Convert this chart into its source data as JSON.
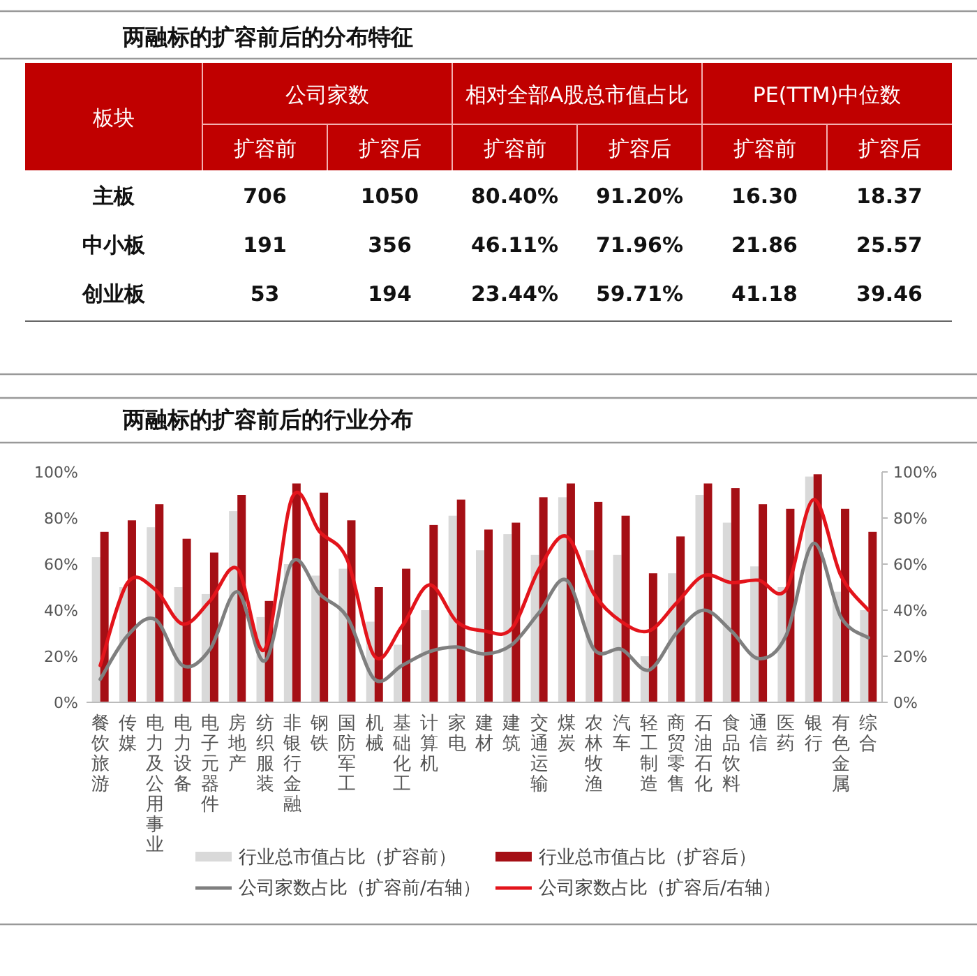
{
  "chart_data": [
    {
      "type": "other",
      "title": "两融标的扩容前后的分布特征",
      "annotations": [
        "板块",
        "公司家数",
        "相对全部A股总市值占比",
        "PE(TTM)中位数",
        "扩容前",
        "扩容后",
        "扩容前",
        "扩容后",
        "扩容前",
        "扩容后",
        "主板",
        "706",
        "1050",
        "80.40%",
        "91.20%",
        "16.30",
        "18.37",
        "中小板",
        "191",
        "356",
        "46.11%",
        "71.96%",
        "21.86",
        "25.57",
        "创业板",
        "53",
        "194",
        "23.44%",
        "59.71%",
        "41.18",
        "39.46"
      ]
    },
    {
      "type": "bar",
      "title": "两融标的扩容前后的行业分布",
      "categories": [
        "餐饮旅游",
        "传媒",
        "电力及公用事业",
        "电力设备",
        "电子元器件",
        "房地产",
        "纺织服装",
        "非银行金融",
        "钢铁",
        "国防军工",
        "机械",
        "基础化工",
        "计算机",
        "家电",
        "建材",
        "建筑",
        "交通运输",
        "煤炭",
        "农林牧渔",
        "汽车",
        "轻工制造",
        "商贸零售",
        "石油石化",
        "食品饮料",
        "通信",
        "医药",
        "银行",
        "有色金属",
        "综合"
      ],
      "series": [
        {
          "name": "行业总市值占比（扩容前）",
          "color": "#d9d9d9",
          "values": [
            63,
            50,
            76,
            50,
            47,
            83,
            37,
            60,
            55,
            58,
            35,
            25,
            40,
            81,
            66,
            73,
            64,
            89,
            66,
            64,
            20,
            56,
            90,
            78,
            59,
            50,
            98,
            48,
            40
          ]
        },
        {
          "name": "行业总市值占比（扩容后）",
          "color": "#a50f15",
          "values": [
            74,
            79,
            86,
            71,
            65,
            90,
            44,
            95,
            91,
            79,
            50,
            58,
            77,
            88,
            75,
            78,
            89,
            95,
            87,
            81,
            56,
            72,
            95,
            93,
            86,
            84,
            99,
            84,
            74
          ]
        },
        {
          "name": "公司家数占比（扩容前/右轴）",
          "type": "line",
          "color": "#7f7f7f",
          "values": [
            10,
            29,
            36,
            16,
            23,
            48,
            18,
            61,
            47,
            37,
            10,
            16,
            22,
            24,
            21,
            25,
            39,
            53,
            23,
            23,
            14,
            30,
            40,
            31,
            19,
            29,
            69,
            37,
            28
          ]
        },
        {
          "name": "公司家数占比（扩容后/右轴）",
          "type": "line",
          "color": "#e3141b",
          "values": [
            16,
            52,
            49,
            34,
            44,
            58,
            23,
            89,
            74,
            62,
            20,
            33,
            51,
            35,
            31,
            32,
            58,
            72,
            47,
            35,
            31,
            43,
            55,
            52,
            53,
            49,
            88,
            55,
            40
          ]
        }
      ],
      "ylim": [
        0,
        100
      ],
      "yticks": [
        {
          "value": 0,
          "label": "0%"
        },
        {
          "value": 20,
          "label": "20%"
        },
        {
          "value": 40,
          "label": "40%"
        },
        {
          "value": 60,
          "label": "60%"
        },
        {
          "value": 80,
          "label": "80%"
        },
        {
          "value": 100,
          "label": "100%"
        }
      ],
      "y2lim": [
        0,
        100
      ],
      "y2ticks": [
        {
          "value": 0,
          "label": "0%"
        },
        {
          "value": 20,
          "label": "20%"
        },
        {
          "value": 40,
          "label": "40%"
        },
        {
          "value": 60,
          "label": "60%"
        },
        {
          "value": 80,
          "label": "80%"
        },
        {
          "value": 100,
          "label": "100%"
        }
      ],
      "legend": "bottom"
    }
  ]
}
